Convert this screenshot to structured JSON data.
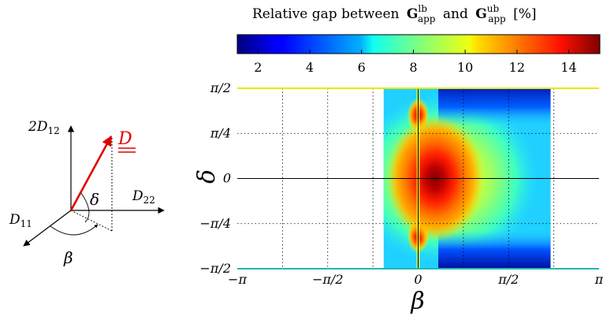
{
  "chart_data": {
    "type": "heatmap",
    "title": "Relative gap between",
    "title_sym_lb": "G",
    "title_sup_lb": "lb",
    "title_sub_lb": "app",
    "title_and": "and",
    "title_sym_ub": "G",
    "title_sup_ub": "ub",
    "title_sub_ub": "app",
    "title_unit": "[%]",
    "xlabel": "β",
    "ylabel": "δ",
    "xlim": [
      -3.1416,
      3.1416
    ],
    "ylim": [
      -1.5708,
      1.5708
    ],
    "x_ticks": [
      {
        "value": -3.1416,
        "label": "−π"
      },
      {
        "value": -1.5708,
        "label": "−π/2"
      },
      {
        "value": 0,
        "label": "0"
      },
      {
        "value": 1.5708,
        "label": "π/2"
      },
      {
        "value": 3.1416,
        "label": "π"
      }
    ],
    "y_ticks": [
      {
        "value": 1.5708,
        "label": "π/2"
      },
      {
        "value": 0.7854,
        "label": "π/4"
      },
      {
        "value": 0,
        "label": "0"
      },
      {
        "value": -0.7854,
        "label": "−π/4"
      },
      {
        "value": -1.5708,
        "label": "−π/2"
      }
    ],
    "grid": true,
    "colormap": "jet",
    "colorbar": {
      "position": "top",
      "range": [
        1.2,
        15.2
      ],
      "ticks": [
        2,
        4,
        6,
        8,
        10,
        12,
        14
      ]
    },
    "data_region": {
      "beta_min": -0.6,
      "beta_max": 2.3,
      "delta_min": -1.5708,
      "delta_max": 1.5708
    },
    "features": [
      {
        "name": "maximum",
        "beta": 0.05,
        "delta": 0.0,
        "value": 15.0
      },
      {
        "name": "local peak",
        "beta": 0.0,
        "delta": 1.1,
        "value": 12.5
      },
      {
        "name": "local peak",
        "beta": 0.0,
        "delta": -1.0,
        "value": 12.5
      },
      {
        "name": "minimum band",
        "beta": 1.3,
        "delta": 1.45,
        "value": 1.5
      },
      {
        "name": "minimum band",
        "beta": 1.3,
        "delta": -1.45,
        "value": 1.5
      }
    ]
  },
  "diagram": {
    "vector_label": "D",
    "axis_up_label": "2D",
    "axis_up_sub": "12",
    "axis_right_label": "D",
    "axis_right_sub": "22",
    "axis_left_label": "D",
    "axis_left_sub": "11",
    "angle_elev_label": "δ",
    "angle_azim_label": "β"
  },
  "colors": {
    "vector": "#e00000",
    "axes": "#000000",
    "grid": "#000000"
  }
}
